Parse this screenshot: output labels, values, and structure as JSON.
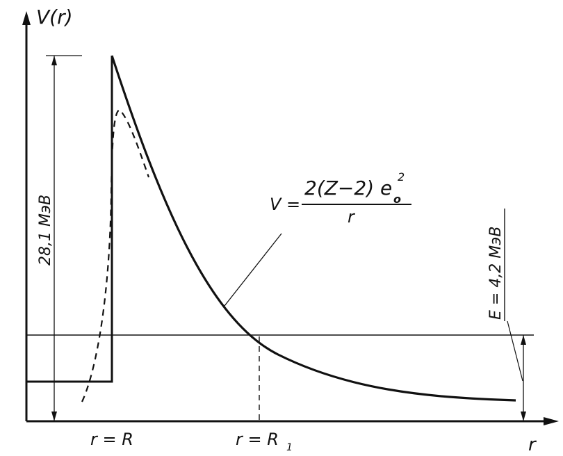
{
  "axes": {
    "y_label": "V(r)",
    "x_label": "r"
  },
  "labels": {
    "barrier_height": "28,1 МэВ",
    "energy": "E = 4,2 МэВ",
    "r_equals_R": "r = R",
    "r_equals_R1": "r = R",
    "r1_subscript": "1"
  },
  "formula": {
    "lhs": "V =",
    "numerator": "2(Z−2) e",
    "subscript": "o",
    "superscript": "2",
    "denominator": "r"
  },
  "colors": {
    "ink": "#111111",
    "background": "#ffffff"
  }
}
